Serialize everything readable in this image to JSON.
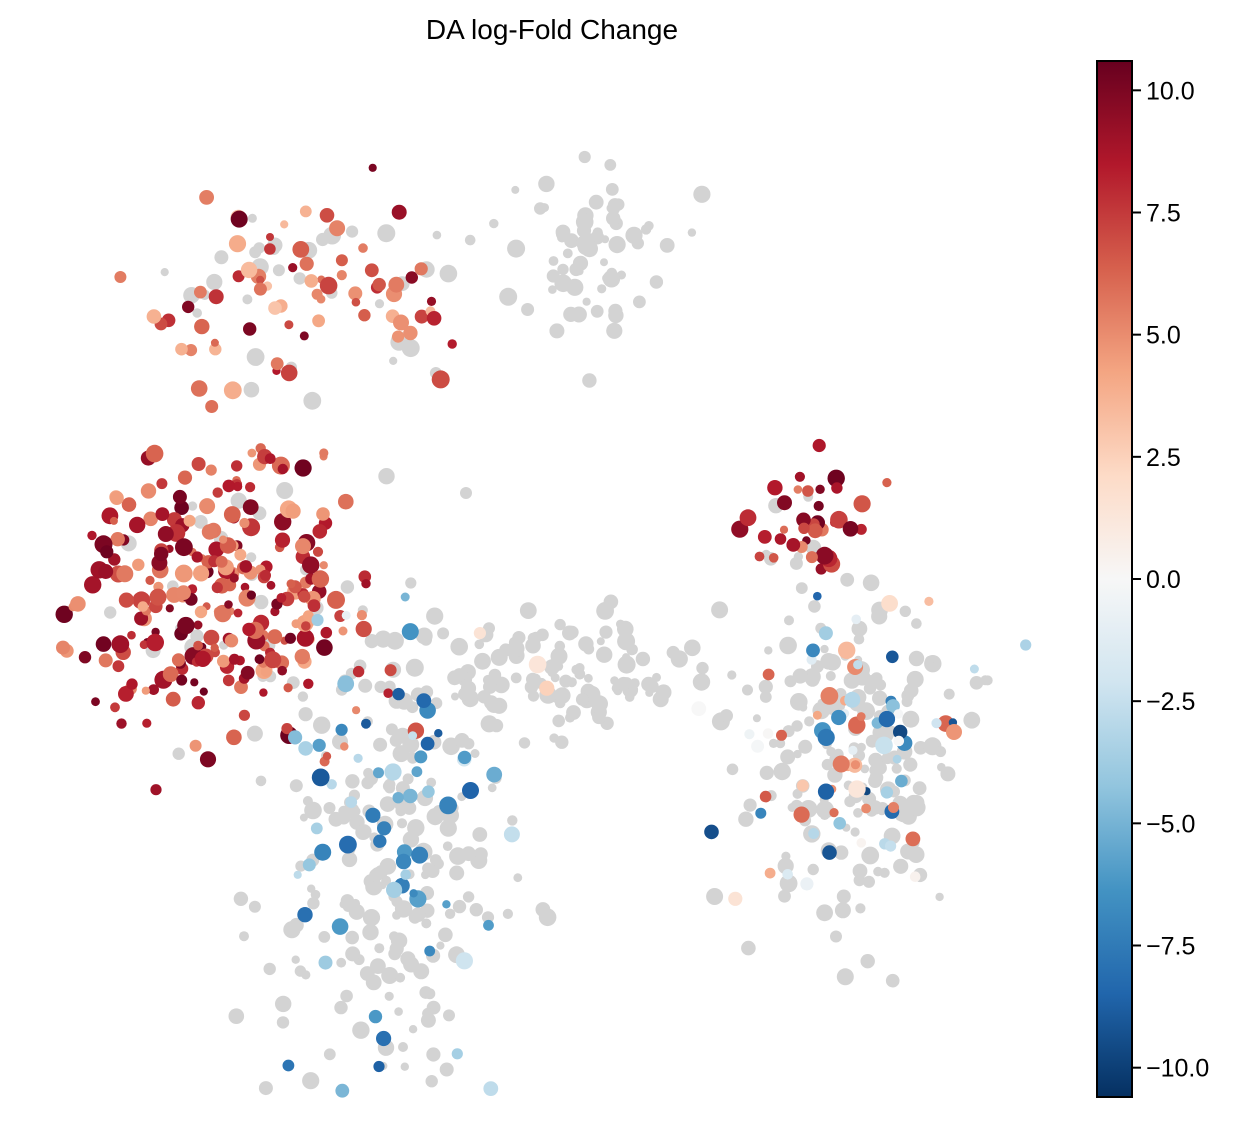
{
  "chart_data": {
    "type": "scatter",
    "title": "DA log-Fold Change",
    "xlabel": "",
    "ylabel": "",
    "axes_visible": false,
    "legend": "none",
    "background_color": "#d3d3d3",
    "colorbar": {
      "label": "",
      "colormap": "RdBu_r",
      "vmin": -10.6,
      "vmax": 10.6,
      "ticks": [
        10.0,
        7.5,
        5.0,
        2.5,
        0.0,
        -2.5,
        -5.0,
        -7.5,
        -10.0
      ],
      "tick_labels": [
        "10.0",
        "7.5",
        "5.0",
        "2.5",
        "0.0",
        "−2.5",
        "−5.0",
        "−7.5",
        "−10.0"
      ],
      "color_stops": [
        "#053061",
        "#2166ac",
        "#4393c3",
        "#92c5de",
        "#d1e5f0",
        "#f7f7f7",
        "#fddbc7",
        "#f4a582",
        "#d6604d",
        "#b2182b",
        "#67001f"
      ]
    },
    "clusters": [
      {
        "region": "upper-left arc",
        "center": [
          -6.0,
          8.5
        ],
        "spread": [
          1.8,
          0.9
        ],
        "n_points": 110,
        "logfc_range": [
          3.0,
          10.5
        ],
        "background_fraction": 0.4
      },
      {
        "region": "left cluster",
        "center": [
          -8.0,
          2.5
        ],
        "spread": [
          1.6,
          1.6
        ],
        "n_points": 300,
        "logfc_range": [
          4.0,
          10.5
        ],
        "background_fraction": 0.1
      },
      {
        "region": "lower-left cluster",
        "center": [
          -4.5,
          -3.0
        ],
        "spread": [
          1.2,
          2.0
        ],
        "n_points": 260,
        "logfc_range": [
          -9.0,
          -2.0
        ],
        "background_fraction": 0.75
      },
      {
        "region": "center bridge",
        "center": [
          -1.0,
          0.8
        ],
        "spread": [
          2.0,
          0.7
        ],
        "n_points": 130,
        "logfc_range": [
          -3.0,
          3.0
        ],
        "background_fraction": 0.95
      },
      {
        "region": "upper-right gray strand",
        "center": [
          -0.2,
          9.5
        ],
        "spread": [
          0.9,
          0.8
        ],
        "n_points": 70,
        "logfc_range": [
          0.0,
          0.0
        ],
        "background_fraction": 1.0
      },
      {
        "region": "right small cluster",
        "center": [
          4.6,
          3.8
        ],
        "spread": [
          0.6,
          0.6
        ],
        "n_points": 45,
        "logfc_range": [
          5.0,
          10.5
        ],
        "background_fraction": 0.2
      },
      {
        "region": "right cluster",
        "center": [
          5.2,
          -1.0
        ],
        "spread": [
          1.2,
          1.7
        ],
        "n_points": 260,
        "logfc_range": [
          -10.0,
          7.0
        ],
        "background_fraction": 0.7
      }
    ]
  }
}
